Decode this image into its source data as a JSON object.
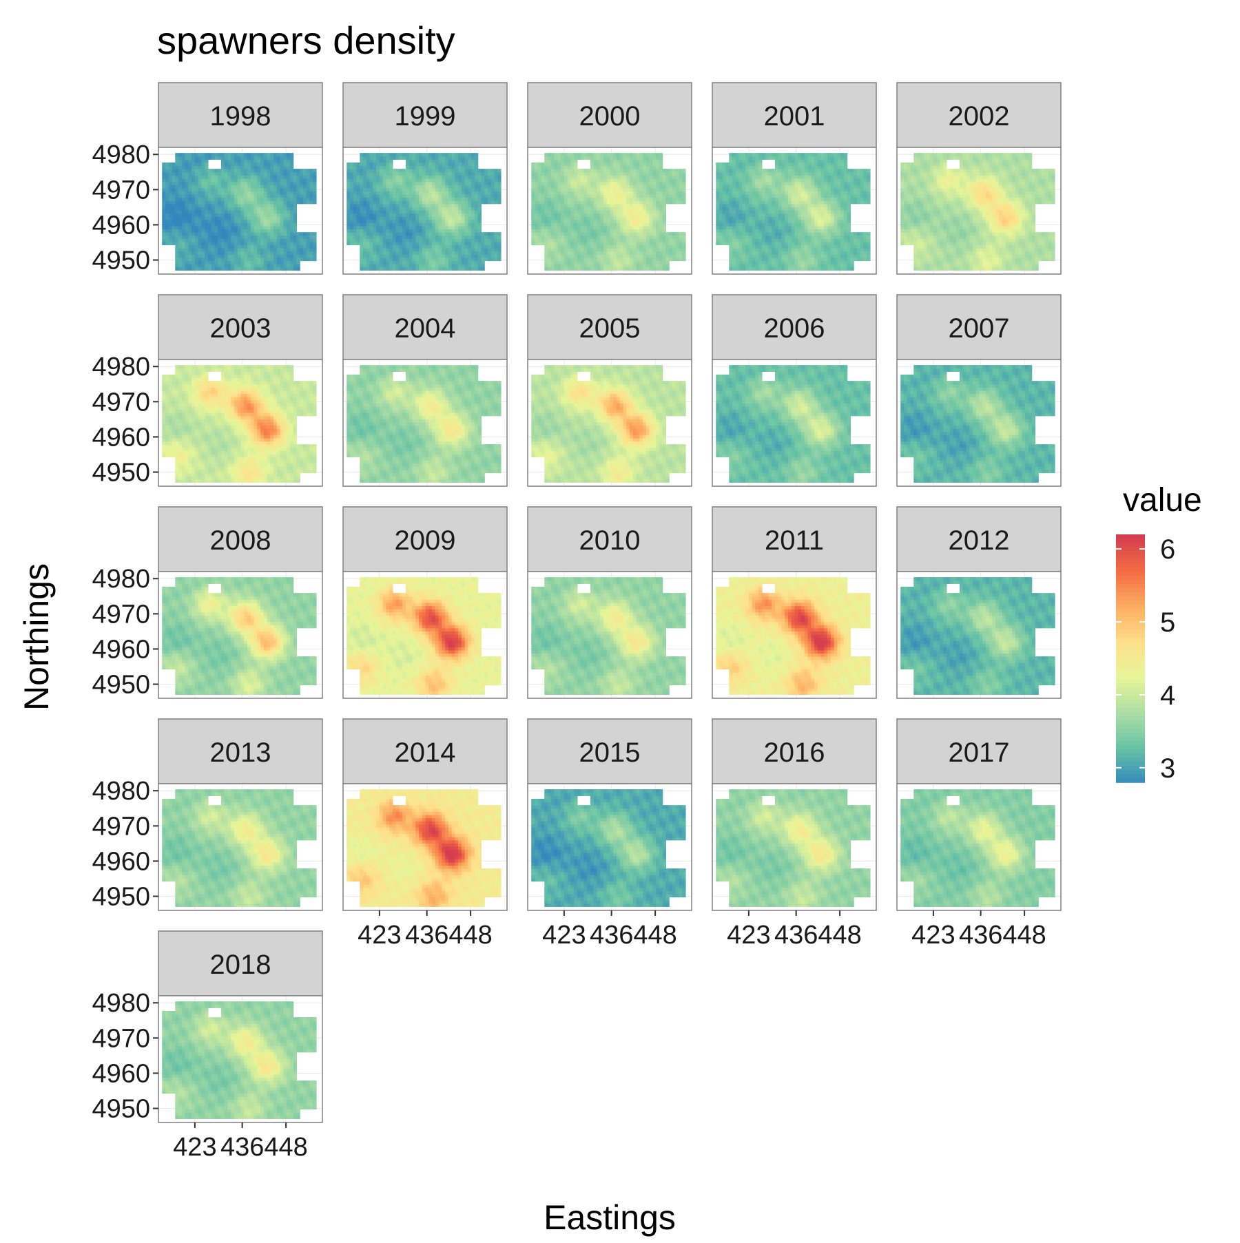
{
  "chart_data": {
    "type": "heatmap",
    "title": "spawners density",
    "xlabel": "Eastings",
    "ylabel": "Northings",
    "legend": {
      "title": "value",
      "position": "right",
      "range": [
        2.8,
        6.2
      ],
      "ticks": [
        3,
        4,
        5,
        6
      ],
      "palette": [
        "#3288bd",
        "#66c2a5",
        "#abdda4",
        "#e6f598",
        "#fee08b",
        "#fdae61",
        "#f46d43",
        "#d53e4f"
      ]
    },
    "x_range": [
      413,
      458
    ],
    "x_ticks": [
      423,
      436,
      448
    ],
    "y_range": [
      4946,
      4982
    ],
    "y_ticks": [
      4950,
      4960,
      4970,
      4980
    ],
    "grid": true,
    "layout": {
      "ncol": 5,
      "nrow": 5
    },
    "hotspots": [
      {
        "x": 427,
        "y": 4973,
        "weight": 0.6
      },
      {
        "x": 437,
        "y": 4969,
        "weight": 0.9
      },
      {
        "x": 443,
        "y": 4962,
        "weight": 1.0
      },
      {
        "x": 438,
        "y": 4950,
        "weight": 0.4
      },
      {
        "x": 418,
        "y": 4955,
        "weight": 0.3
      }
    ],
    "coldspots": [
      {
        "x": 418,
        "y": 4962,
        "weight": 0.6
      },
      {
        "x": 430,
        "y": 4958,
        "weight": 0.4
      },
      {
        "x": 425,
        "y": 4975,
        "weight": 0.3
      }
    ],
    "panels": [
      {
        "year": "1998",
        "base_value": 3.0,
        "hotspot_gain": 0.7
      },
      {
        "year": "1999",
        "base_value": 3.1,
        "hotspot_gain": 0.9
      },
      {
        "year": "2000",
        "base_value": 3.6,
        "hotspot_gain": 0.9
      },
      {
        "year": "2001",
        "base_value": 3.3,
        "hotspot_gain": 0.9
      },
      {
        "year": "2002",
        "base_value": 3.8,
        "hotspot_gain": 1.1
      },
      {
        "year": "2003",
        "base_value": 4.0,
        "hotspot_gain": 1.6
      },
      {
        "year": "2004",
        "base_value": 3.6,
        "hotspot_gain": 1.0
      },
      {
        "year": "2005",
        "base_value": 3.9,
        "hotspot_gain": 1.5
      },
      {
        "year": "2006",
        "base_value": 3.3,
        "hotspot_gain": 0.9
      },
      {
        "year": "2007",
        "base_value": 3.2,
        "hotspot_gain": 0.8
      },
      {
        "year": "2008",
        "base_value": 3.6,
        "hotspot_gain": 1.5
      },
      {
        "year": "2009",
        "base_value": 4.3,
        "hotspot_gain": 1.9
      },
      {
        "year": "2010",
        "base_value": 3.6,
        "hotspot_gain": 1.0
      },
      {
        "year": "2011",
        "base_value": 4.4,
        "hotspot_gain": 1.9
      },
      {
        "year": "2012",
        "base_value": 3.2,
        "hotspot_gain": 0.8
      },
      {
        "year": "2013",
        "base_value": 3.6,
        "hotspot_gain": 1.0
      },
      {
        "year": "2014",
        "base_value": 4.5,
        "hotspot_gain": 1.8
      },
      {
        "year": "2015",
        "base_value": 3.1,
        "hotspot_gain": 0.8
      },
      {
        "year": "2016",
        "base_value": 3.6,
        "hotspot_gain": 1.0
      },
      {
        "year": "2017",
        "base_value": 3.5,
        "hotspot_gain": 0.9
      },
      {
        "year": "2018",
        "base_value": 3.6,
        "hotspot_gain": 1.0
      }
    ]
  }
}
